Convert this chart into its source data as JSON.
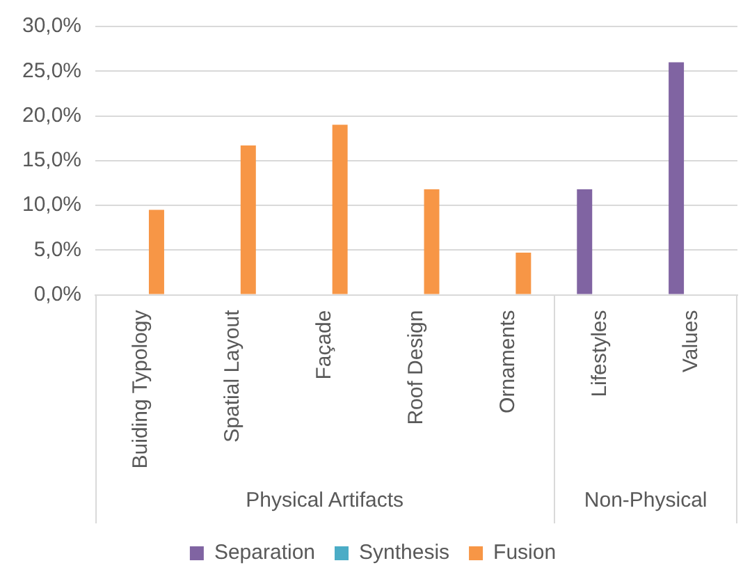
{
  "chart_data": {
    "type": "bar",
    "categories": [
      "Buiding Typology",
      "Spatial Layout",
      "Façade",
      "Roof Design",
      "Ornaments",
      "Lifestyles",
      "Values"
    ],
    "series": [
      {
        "name": "Separation",
        "color": "#8064a2",
        "values": [
          null,
          null,
          null,
          null,
          null,
          11.8,
          26.0
        ]
      },
      {
        "name": "Synthesis",
        "color": "#4bacc6",
        "values": [
          null,
          null,
          null,
          null,
          null,
          null,
          null
        ]
      },
      {
        "name": "Fusion",
        "color": "#f79646",
        "values": [
          9.5,
          16.7,
          19.0,
          11.8,
          4.7,
          null,
          null
        ]
      }
    ],
    "ylim": [
      0,
      30
    ],
    "yticks": [
      {
        "value": 0,
        "label": "0,0%"
      },
      {
        "value": 5,
        "label": "5,0%"
      },
      {
        "value": 10,
        "label": "10,0%"
      },
      {
        "value": 15,
        "label": "15,0%"
      },
      {
        "value": 20,
        "label": "20,0%"
      },
      {
        "value": 25,
        "label": "25,0%"
      },
      {
        "value": 30,
        "label": "30,0%"
      }
    ],
    "grid": "y",
    "legend": "bottom",
    "annotations": [
      "Physical Artifacts",
      "Non-Physical"
    ]
  }
}
